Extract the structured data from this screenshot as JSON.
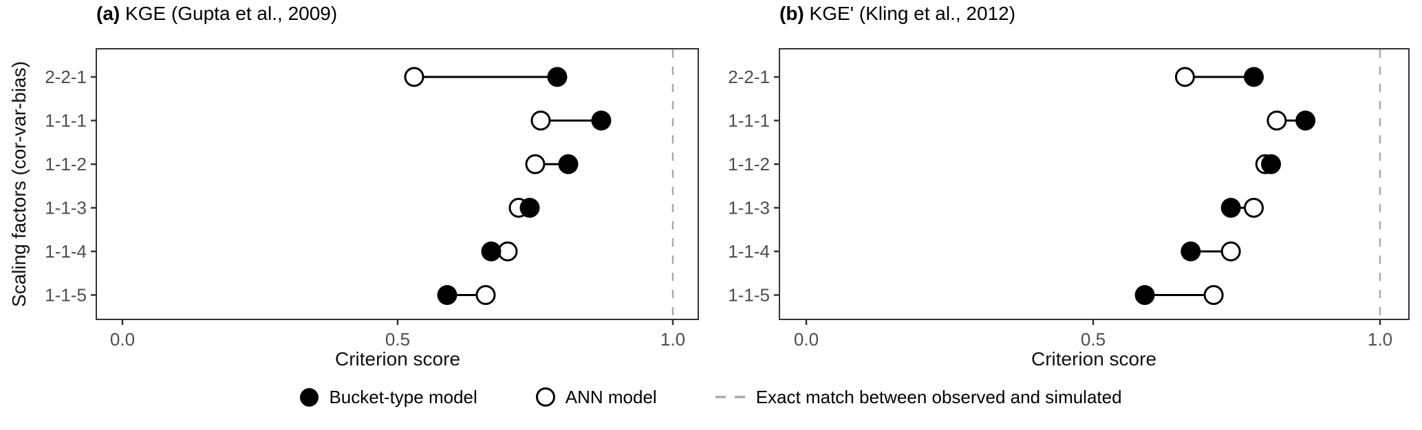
{
  "figure": {
    "y_axis_title": "Scaling factors (cor-var-bias)",
    "x_axis_title": "Criterion score",
    "x_tick_labels": [
      "0.0",
      "0.5",
      "1.0"
    ],
    "x_tick_values": [
      0,
      0.5,
      1.0
    ]
  },
  "chart_data": [
    {
      "type": "scatter",
      "variant": "dumbbell",
      "title_tag": "(a)",
      "title": "KGE (Gupta et al., 2009)",
      "categories": [
        "2-2-1",
        "1-1-1",
        "1-1-2",
        "1-1-3",
        "1-1-4",
        "1-1-5"
      ],
      "series": [
        {
          "name": "Bucket-type model",
          "marker": "filled-circle",
          "values": [
            0.79,
            0.87,
            0.81,
            0.74,
            0.67,
            0.59
          ]
        },
        {
          "name": "ANN model",
          "marker": "open-circle",
          "values": [
            0.53,
            0.76,
            0.75,
            0.72,
            0.7,
            0.66
          ]
        }
      ],
      "xlabel": "Criterion score",
      "ylabel": "Scaling factors (cor-var-bias)",
      "xlim": [
        -0.05,
        1.05
      ],
      "x_ticks": [
        0,
        0.5,
        1.0
      ],
      "reference_line_x": 1.0,
      "grid": false
    },
    {
      "type": "scatter",
      "variant": "dumbbell",
      "title_tag": "(b)",
      "title": "KGE' (Kling et al., 2012)",
      "categories": [
        "2-2-1",
        "1-1-1",
        "1-1-2",
        "1-1-3",
        "1-1-4",
        "1-1-5"
      ],
      "series": [
        {
          "name": "Bucket-type model",
          "marker": "filled-circle",
          "values": [
            0.78,
            0.87,
            0.81,
            0.74,
            0.67,
            0.59
          ]
        },
        {
          "name": "ANN model",
          "marker": "open-circle",
          "values": [
            0.66,
            0.82,
            0.8,
            0.78,
            0.74,
            0.71
          ]
        }
      ],
      "xlabel": "Criterion score",
      "ylabel": "",
      "xlim": [
        -0.05,
        1.05
      ],
      "x_ticks": [
        0,
        0.5,
        1.0
      ],
      "reference_line_x": 1.0,
      "grid": false
    }
  ],
  "legend": {
    "items": [
      {
        "symbol": "filled-circle",
        "label": "Bucket-type model"
      },
      {
        "symbol": "open-circle",
        "label": "ANN model"
      },
      {
        "symbol": "dashed-line",
        "label": "Exact match between observed and simulated"
      }
    ]
  },
  "colors": {
    "marker": "#000000",
    "open_marker_fill": "#ffffff",
    "reference_line": "#a9a9a9",
    "axis_text": "#4d4d4d",
    "axis_title": "#000000",
    "panel_border": "#333333"
  }
}
